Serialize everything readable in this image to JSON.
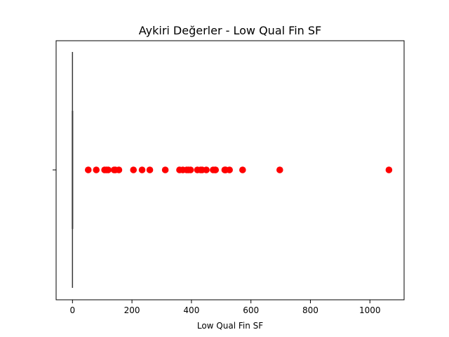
{
  "chart_data": {
    "type": "box",
    "title": "Aykiri Değerler - Low Qual Fin SF",
    "xlabel": "Low Qual Fin SF",
    "ylabel": "",
    "xlim": [
      -55,
      1115
    ],
    "x_ticks": [
      0,
      200,
      400,
      600,
      800,
      1000
    ],
    "x_tick_labels": [
      "0",
      "200",
      "400",
      "600",
      "800",
      "1000"
    ],
    "box": {
      "q1": 0,
      "median": 0,
      "q3": 0,
      "whisker_low": 0,
      "whisker_high": 0
    },
    "outliers": [
      53,
      80,
      108,
      114,
      120,
      140,
      144,
      156,
      205,
      234,
      260,
      312,
      360,
      371,
      384,
      390,
      397,
      420,
      431,
      436,
      450,
      473,
      479,
      481,
      512,
      513,
      515,
      528,
      572,
      697,
      1064
    ],
    "colors": {
      "box": "#3a3a3a",
      "outlier": "#ff0000",
      "axes": "#000000"
    },
    "grid": false,
    "legend": "none"
  }
}
